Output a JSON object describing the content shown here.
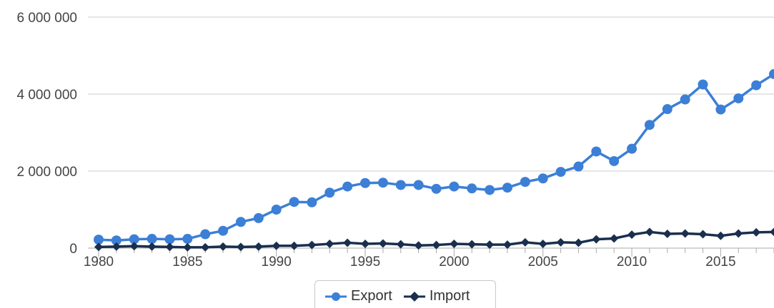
{
  "chart_data": {
    "type": "line",
    "title": "",
    "xlabel": "",
    "ylabel": "",
    "xlim": [
      1980,
      2018
    ],
    "ylim": [
      0,
      6000000
    ],
    "y_ticks": [
      0,
      2000000,
      4000000,
      6000000
    ],
    "y_tick_labels": [
      "0",
      "2 000 000",
      "4 000 000",
      "6 000 000"
    ],
    "x_ticks": [
      1980,
      1985,
      1990,
      1995,
      2000,
      2005,
      2010,
      2015
    ],
    "x_tick_labels": [
      "1980",
      "1985",
      "1990",
      "1995",
      "2000",
      "2005",
      "2010",
      "2015"
    ],
    "grid": "horizontal",
    "legend_position": "bottom-center",
    "x": [
      1980,
      1981,
      1982,
      1983,
      1984,
      1985,
      1986,
      1987,
      1988,
      1989,
      1990,
      1991,
      1992,
      1993,
      1994,
      1995,
      1996,
      1997,
      1998,
      1999,
      2000,
      2001,
      2002,
      2003,
      2004,
      2005,
      2006,
      2007,
      2008,
      2009,
      2010,
      2011,
      2012,
      2013,
      2014,
      2015,
      2016,
      2017,
      2018
    ],
    "series": [
      {
        "name": "Export",
        "color": "#3c7fd6",
        "marker": "circle",
        "values": [
          220000,
          200000,
          230000,
          240000,
          230000,
          240000,
          360000,
          450000,
          680000,
          780000,
          1000000,
          1200000,
          1190000,
          1440000,
          1600000,
          1690000,
          1700000,
          1640000,
          1640000,
          1540000,
          1600000,
          1550000,
          1510000,
          1570000,
          1720000,
          1810000,
          1980000,
          2120000,
          2510000,
          2260000,
          2580000,
          3200000,
          3610000,
          3860000,
          4250000,
          3600000,
          3890000,
          4230000,
          4520000
        ]
      },
      {
        "name": "Import",
        "color": "#1a2f4d",
        "marker": "diamond",
        "values": [
          30000,
          40000,
          50000,
          40000,
          30000,
          20000,
          20000,
          40000,
          30000,
          40000,
          60000,
          60000,
          80000,
          110000,
          140000,
          110000,
          120000,
          100000,
          70000,
          80000,
          110000,
          100000,
          90000,
          90000,
          150000,
          110000,
          150000,
          140000,
          230000,
          250000,
          350000,
          420000,
          370000,
          380000,
          360000,
          320000,
          380000,
          410000,
          420000
        ]
      }
    ]
  },
  "legend": {
    "items": [
      {
        "label": "Export"
      },
      {
        "label": "Import"
      }
    ]
  }
}
